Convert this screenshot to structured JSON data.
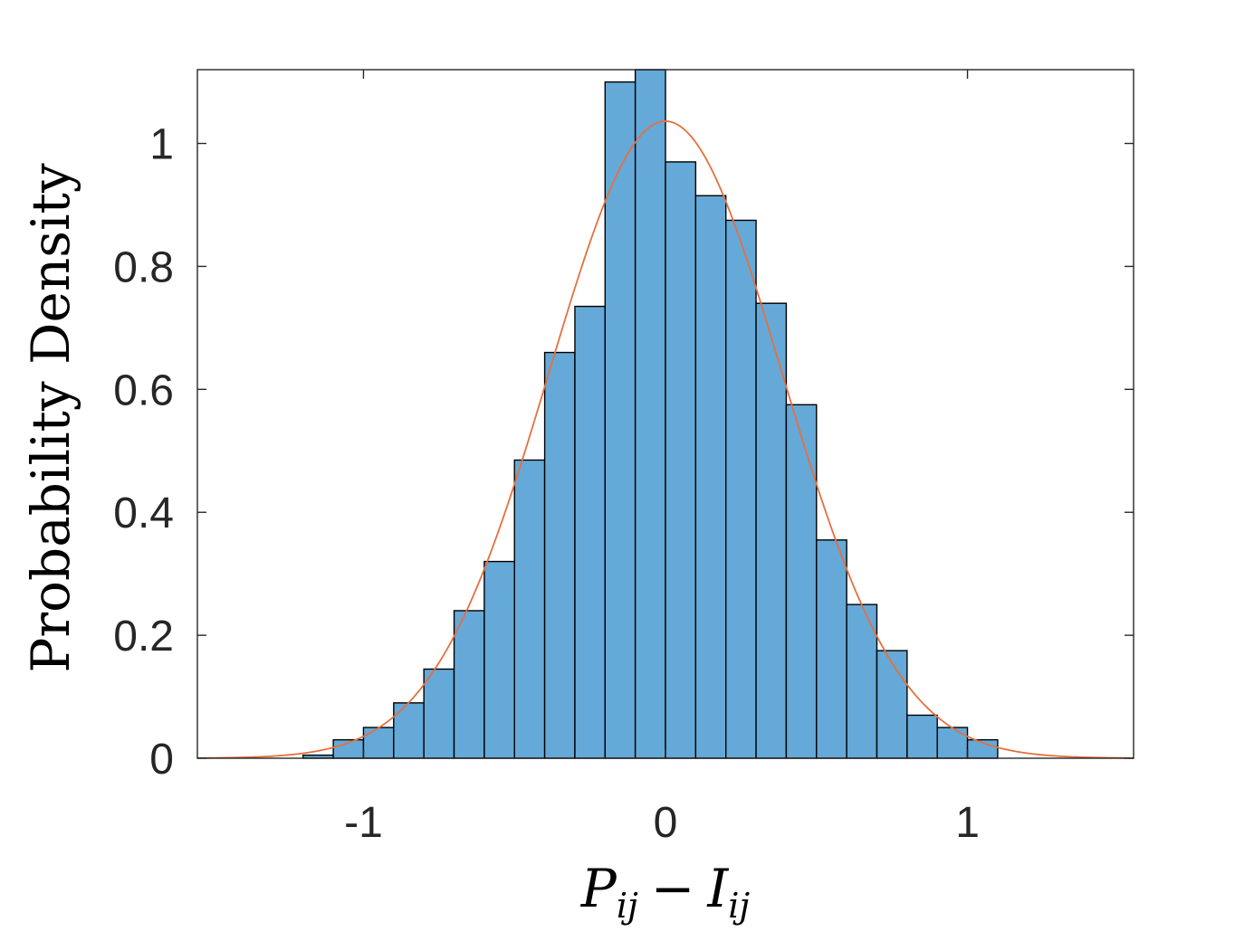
{
  "chart_data": {
    "type": "bar",
    "histogram": true,
    "xlabel": {
      "base1": "P",
      "sub1": "ij",
      "op": "−",
      "base2": "I",
      "sub2": "ij"
    },
    "ylabel": "Probability Density",
    "xlim": [
      -1.55,
      1.55
    ],
    "ylim": [
      0,
      1.12
    ],
    "xticks": [
      -1,
      0,
      1
    ],
    "xtick_labels": [
      "-1",
      "0",
      "1"
    ],
    "yticks": [
      0,
      0.2,
      0.4,
      0.6,
      0.8,
      1
    ],
    "ytick_labels": [
      "0",
      "0.2",
      "0.4",
      "0.6",
      "0.8",
      "1"
    ],
    "grid": false,
    "box": true,
    "bin_edges": [
      -1.2,
      -1.1,
      -1.0,
      -0.9,
      -0.8,
      -0.7,
      -0.6,
      -0.5,
      -0.4,
      -0.3,
      -0.2,
      -0.1,
      0.0,
      0.1,
      0.2,
      0.3,
      0.4,
      0.5,
      0.6,
      0.7,
      0.8,
      0.9,
      1.0,
      1.1
    ],
    "bin_values": [
      0.005,
      0.03,
      0.05,
      0.09,
      0.145,
      0.24,
      0.32,
      0.485,
      0.66,
      0.735,
      1.1,
      1.12,
      0.97,
      0.915,
      0.875,
      0.74,
      0.575,
      0.355,
      0.25,
      0.175,
      0.07,
      0.05,
      0.03
    ],
    "fit_curve": {
      "type": "normal-pdf",
      "mean": 0.0,
      "std": 0.385,
      "xrange": [
        -1.55,
        1.55
      ]
    },
    "colors": {
      "bars": "#65A9D8",
      "bar_edge": "#000000",
      "curve": "#E4703F",
      "axes": "#262626"
    }
  }
}
